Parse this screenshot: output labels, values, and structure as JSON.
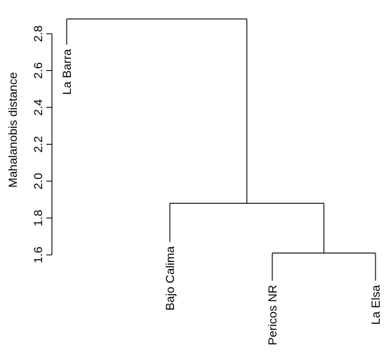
{
  "chart_data": {
    "type": "dendrogram",
    "title": "",
    "xlabel": "",
    "ylabel": "Mahalanobis distance",
    "ylim": [
      1.6,
      2.8
    ],
    "yticks": [
      "1.6",
      "1.8",
      "2.0",
      "2.2",
      "2.4",
      "2.6",
      "2.8"
    ],
    "leaves": [
      "La Barra",
      "Bajo Calima",
      "Pericos NR",
      "La Elsa"
    ],
    "leaf_heights": [
      2.74,
      1.67,
      1.46,
      1.46
    ],
    "merges": [
      {
        "members": [
          "Pericos NR",
          "La Elsa"
        ],
        "height": 1.61
      },
      {
        "members": [
          "Bajo Calima",
          "Pericos NR",
          "La Elsa"
        ],
        "height": 1.88
      },
      {
        "members": [
          "La Barra",
          "Bajo Calima",
          "Pericos NR",
          "La Elsa"
        ],
        "height": 2.88
      }
    ]
  }
}
